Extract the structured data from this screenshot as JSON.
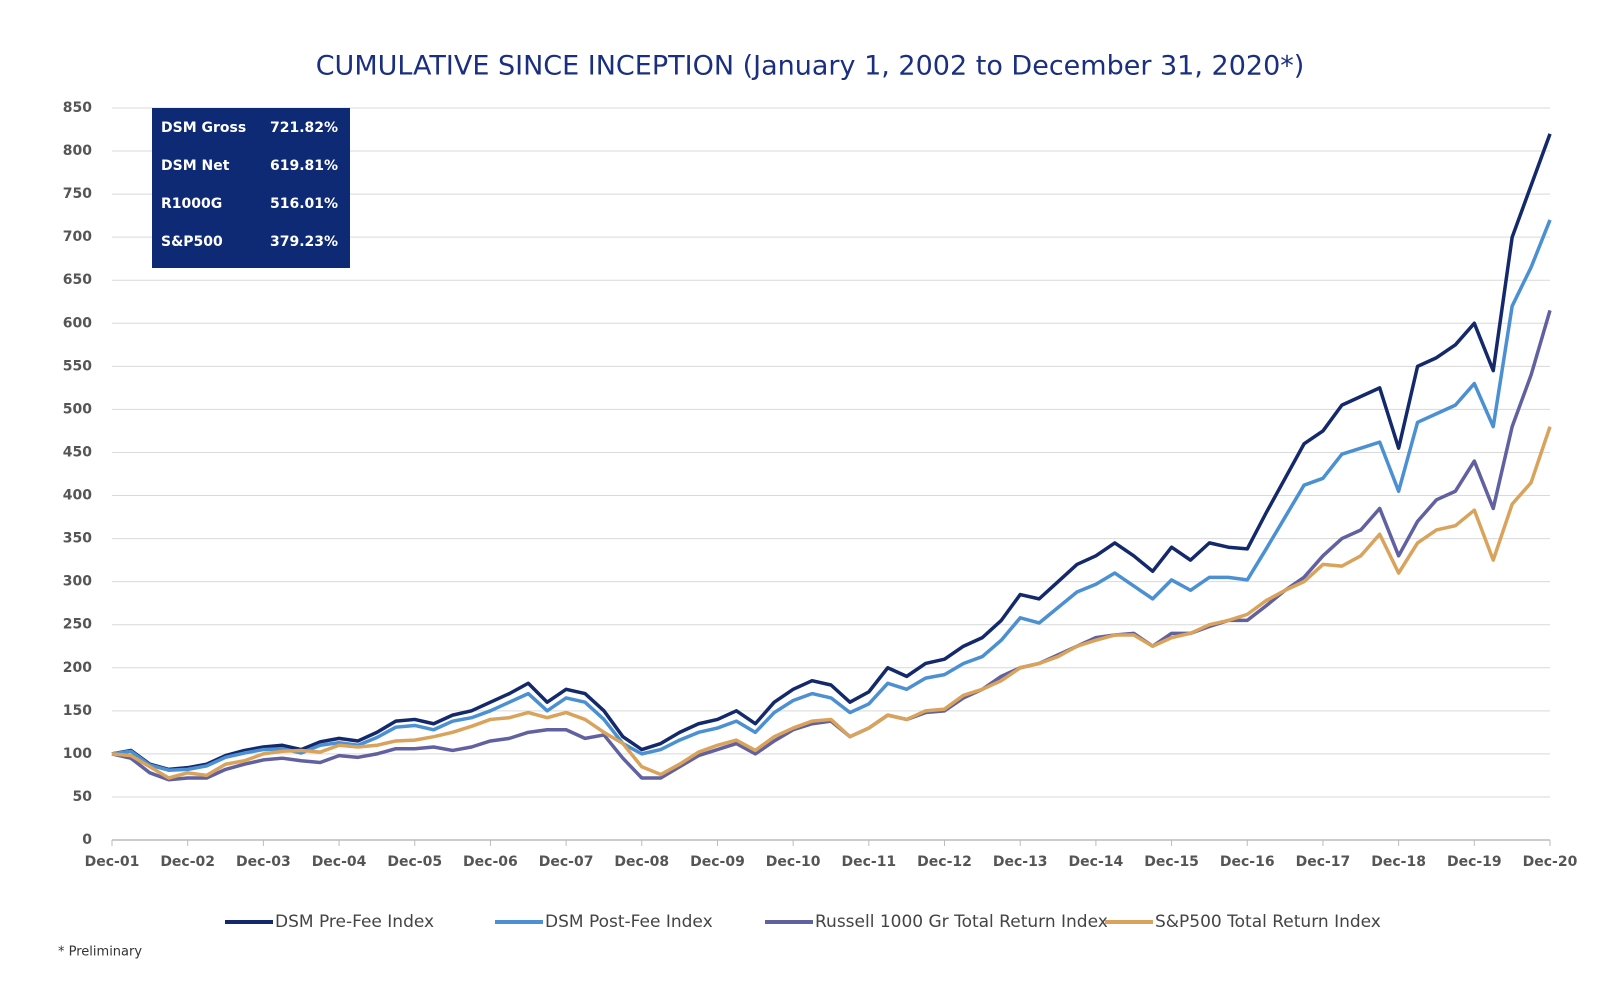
{
  "chart_data": {
    "type": "line",
    "title": "CUMULATIVE SINCE INCEPTION (January 1, 2002 to December 31, 2020*)",
    "footnote": "* Preliminary",
    "categories": [
      "Dec-01",
      null,
      null,
      null,
      "Dec-02",
      null,
      null,
      null,
      "Dec-03",
      null,
      null,
      null,
      "Dec-04",
      null,
      null,
      null,
      "Dec-05",
      null,
      null,
      null,
      "Dec-06",
      null,
      null,
      null,
      "Dec-07",
      null,
      null,
      null,
      "Dec-08",
      null,
      null,
      null,
      "Dec-09",
      null,
      null,
      null,
      "Dec-10",
      null,
      null,
      null,
      "Dec-11",
      null,
      null,
      null,
      "Dec-12",
      null,
      null,
      null,
      "Dec-13",
      null,
      null,
      null,
      "Dec-14",
      null,
      null,
      null,
      "Dec-15",
      null,
      null,
      null,
      "Dec-16",
      null,
      null,
      null,
      "Dec-17",
      null,
      null,
      null,
      "Dec-18",
      null,
      null,
      null,
      "Dec-19",
      null,
      null,
      null,
      "Dec-20"
    ],
    "series": [
      {
        "name": "DSM Pre-Fee Index",
        "color": "#13296b",
        "values": [
          100,
          104,
          88,
          82,
          84,
          88,
          98,
          104,
          108,
          110,
          105,
          114,
          118,
          115,
          125,
          138,
          140,
          135,
          145,
          150,
          160,
          170,
          182,
          160,
          175,
          170,
          150,
          120,
          105,
          112,
          125,
          135,
          140,
          150,
          135,
          160,
          175,
          185,
          180,
          160,
          172,
          200,
          190,
          205,
          210,
          225,
          235,
          255,
          285,
          280,
          300,
          320,
          330,
          345,
          330,
          312,
          340,
          325,
          345,
          340,
          338,
          380,
          420,
          460,
          475,
          505,
          515,
          525,
          455,
          550,
          560,
          575,
          600,
          545,
          700,
          760,
          820
        ]
      },
      {
        "name": "DSM Post-Fee Index",
        "color": "#4a90d2",
        "values": [
          100,
          103,
          87,
          81,
          82,
          86,
          96,
          101,
          105,
          106,
          101,
          110,
          113,
          110,
          119,
          131,
          133,
          128,
          138,
          142,
          150,
          160,
          170,
          150,
          165,
          160,
          140,
          112,
          100,
          105,
          116,
          125,
          130,
          138,
          125,
          148,
          162,
          170,
          165,
          148,
          158,
          182,
          175,
          188,
          192,
          205,
          213,
          232,
          258,
          252,
          270,
          288,
          297,
          310,
          295,
          280,
          302,
          290,
          305,
          305,
          302,
          338,
          375,
          412,
          420,
          448,
          455,
          462,
          405,
          485,
          495,
          505,
          530,
          480,
          620,
          665,
          720
        ]
      },
      {
        "name": "Russell 1000 Gr Total Return Index",
        "color": "#6160a0",
        "values": [
          100,
          95,
          78,
          70,
          72,
          72,
          82,
          88,
          93,
          95,
          92,
          90,
          98,
          96,
          100,
          106,
          106,
          108,
          104,
          108,
          115,
          118,
          125,
          128,
          128,
          118,
          122,
          95,
          72,
          72,
          85,
          98,
          105,
          112,
          100,
          115,
          128,
          135,
          138,
          120,
          130,
          145,
          140,
          148,
          150,
          165,
          175,
          190,
          200,
          205,
          215,
          225,
          235,
          238,
          240,
          225,
          240,
          240,
          248,
          255,
          255,
          272,
          290,
          305,
          330,
          350,
          360,
          385,
          330,
          370,
          395,
          405,
          440,
          385,
          480,
          540,
          615
        ]
      },
      {
        "name": "S&P500 Total Return Index",
        "color": "#d9a35b",
        "values": [
          100,
          98,
          85,
          72,
          78,
          75,
          88,
          92,
          100,
          103,
          104,
          102,
          110,
          108,
          110,
          115,
          116,
          120,
          125,
          132,
          140,
          142,
          148,
          142,
          148,
          140,
          125,
          112,
          85,
          76,
          88,
          102,
          110,
          116,
          104,
          120,
          130,
          138,
          140,
          120,
          130,
          145,
          140,
          150,
          152,
          168,
          175,
          185,
          200,
          205,
          213,
          225,
          232,
          238,
          238,
          225,
          235,
          240,
          250,
          255,
          262,
          278,
          290,
          300,
          320,
          318,
          330,
          355,
          310,
          345,
          360,
          365,
          383,
          325,
          390,
          415,
          480
        ]
      }
    ],
    "ylim": [
      0,
      850
    ],
    "yticks": [
      0,
      50,
      100,
      150,
      200,
      250,
      300,
      350,
      400,
      450,
      500,
      550,
      600,
      650,
      700,
      750,
      800,
      850
    ],
    "grid": true,
    "summary_box": {
      "color": "#0f2a74",
      "rows": [
        [
          "DSM Gross",
          "721.82%"
        ],
        [
          "DSM Net",
          "619.81%"
        ],
        [
          "R1000G",
          "516.01%"
        ],
        [
          "S&P500",
          "379.23%"
        ]
      ]
    }
  }
}
